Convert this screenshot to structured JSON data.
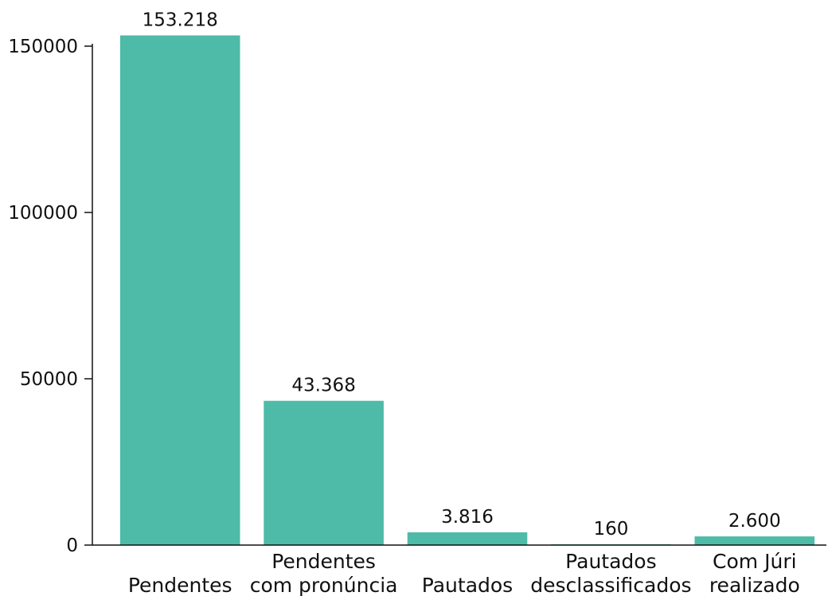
{
  "chart_data": {
    "type": "bar",
    "title": "",
    "xlabel": "",
    "ylabel": "",
    "categories": [
      [
        "Pendentes"
      ],
      [
        "Pendentes",
        "com pronúncia"
      ],
      [
        "Pautados"
      ],
      [
        "Pautados",
        "desclassificados"
      ],
      [
        "Com Júri",
        "realizado"
      ]
    ],
    "values": [
      153218,
      43368,
      3816,
      160,
      2600
    ],
    "value_labels": [
      "153.218",
      "43.368",
      "3.816",
      "160",
      "2.600"
    ],
    "yticks": [
      0,
      50000,
      100000,
      150000
    ],
    "ylim": [
      0,
      155000
    ],
    "grid": false,
    "legend": "none",
    "bar_color": "#4dbba8"
  }
}
